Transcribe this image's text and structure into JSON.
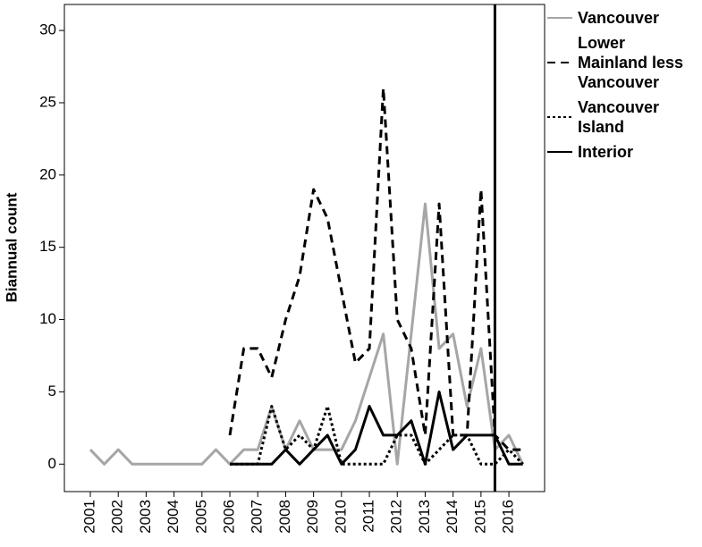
{
  "chart_data": {
    "type": "line",
    "y_label": "Biannual count",
    "x": [
      2001,
      2001.5,
      2002,
      2002.5,
      2003,
      2003.5,
      2004,
      2004.5,
      2005,
      2005.5,
      2006,
      2006.5,
      2007,
      2007.5,
      2008,
      2008.5,
      2009,
      2009.5,
      2010,
      2010.5,
      2011,
      2011.5,
      2012,
      2012.5,
      2013,
      2013.5,
      2014,
      2014.5,
      2015,
      2015.5,
      2016,
      2016.5
    ],
    "series": [
      {
        "name": "Vancouver",
        "color": "#a6a6a6",
        "style": "solid",
        "values": [
          1,
          0,
          1,
          0,
          0,
          0,
          0,
          0,
          0,
          1,
          0,
          1,
          1,
          4,
          1,
          3,
          1,
          1,
          1,
          3,
          6,
          9,
          0,
          9,
          18,
          8,
          9,
          4,
          8,
          1,
          2,
          0
        ]
      },
      {
        "name": "Lower Mainland less Vancouver",
        "color": "#000000",
        "style": "dashed",
        "values": [
          null,
          null,
          null,
          null,
          null,
          null,
          null,
          null,
          null,
          null,
          2,
          8,
          8,
          6,
          10,
          13,
          19,
          17,
          12,
          7,
          8,
          26,
          10,
          8,
          2,
          18,
          2,
          2,
          19,
          2,
          1,
          1
        ]
      },
      {
        "name": "Vancouver Island",
        "color": "#000000",
        "style": "dotted",
        "values": [
          null,
          null,
          null,
          null,
          null,
          null,
          null,
          null,
          null,
          null,
          0,
          0,
          0,
          4,
          1,
          2,
          1,
          4,
          0,
          0,
          0,
          0,
          2,
          2,
          0,
          1,
          2,
          2,
          0,
          0,
          1,
          0
        ]
      },
      {
        "name": "Interior",
        "color": "#000000",
        "style": "solid",
        "values": [
          null,
          null,
          null,
          null,
          null,
          null,
          null,
          null,
          null,
          null,
          0,
          0,
          0,
          0,
          1,
          0,
          1,
          2,
          0,
          1,
          4,
          2,
          2,
          3,
          0,
          5,
          1,
          2,
          2,
          2,
          0,
          0
        ]
      }
    ],
    "reference_x": 2015.5,
    "xlim": [
      2000.07,
      2017.28
    ],
    "xticks": [
      2001,
      2002,
      2003,
      2004,
      2005,
      2006,
      2007,
      2008,
      2009,
      2010,
      2011,
      2012,
      2013,
      2014,
      2015,
      2016
    ],
    "ylim": [
      -1.9,
      31.8
    ],
    "yticks": [
      0,
      5,
      10,
      15,
      20,
      25,
      30
    ],
    "legend": "right"
  }
}
